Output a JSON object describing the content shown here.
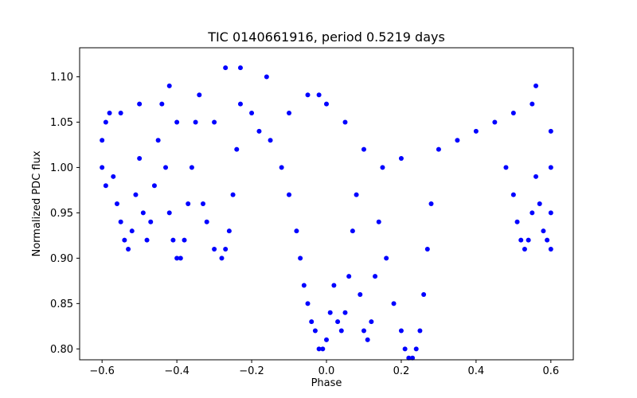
{
  "chart_data": {
    "type": "scatter",
    "title": "TIC 0140661916, period 0.5219 days",
    "xlabel": "Phase",
    "ylabel": "Normalized PDC flux",
    "xlim": [
      -0.66,
      0.66
    ],
    "ylim": [
      0.788,
      1.132
    ],
    "grid": false,
    "legend": "none",
    "marker_color": "#0000ff",
    "x_ticks": [
      {
        "value": -0.6,
        "label": "−0.6"
      },
      {
        "value": -0.4,
        "label": "−0.4"
      },
      {
        "value": -0.2,
        "label": "−0.2"
      },
      {
        "value": 0.0,
        "label": "0.0"
      },
      {
        "value": 0.2,
        "label": "0.2"
      },
      {
        "value": 0.4,
        "label": "0.4"
      },
      {
        "value": 0.6,
        "label": "0.6"
      }
    ],
    "y_ticks": [
      {
        "value": 0.8,
        "label": "0.80"
      },
      {
        "value": 0.85,
        "label": "0.85"
      },
      {
        "value": 0.9,
        "label": "0.90"
      },
      {
        "value": 0.95,
        "label": "0.95"
      },
      {
        "value": 1.0,
        "label": "1.00"
      },
      {
        "value": 1.05,
        "label": "1.05"
      },
      {
        "value": 1.1,
        "label": "1.10"
      }
    ],
    "series": [
      {
        "description_x": "phase",
        "points": [
          [
            -0.6,
            1.03
          ],
          [
            -0.6,
            1.0
          ],
          [
            -0.59,
            1.05
          ],
          [
            -0.59,
            0.98
          ],
          [
            -0.58,
            1.06
          ],
          [
            -0.57,
            0.99
          ],
          [
            -0.56,
            0.96
          ],
          [
            -0.55,
            0.94
          ],
          [
            -0.54,
            0.92
          ],
          [
            -0.53,
            0.91
          ],
          [
            -0.52,
            0.93
          ],
          [
            -0.51,
            0.97
          ],
          [
            -0.5,
            1.01
          ],
          [
            -0.5,
            1.07
          ],
          [
            -0.49,
            0.95
          ],
          [
            -0.48,
            0.92
          ],
          [
            -0.47,
            0.94
          ],
          [
            -0.46,
            0.98
          ],
          [
            -0.45,
            1.03
          ],
          [
            -0.44,
            1.07
          ],
          [
            -0.43,
            1.0
          ],
          [
            -0.42,
            0.95
          ],
          [
            -0.41,
            0.92
          ],
          [
            -0.4,
            0.9
          ],
          [
            -0.39,
            0.9
          ],
          [
            -0.38,
            0.92
          ],
          [
            -0.37,
            0.96
          ],
          [
            -0.36,
            1.0
          ],
          [
            -0.35,
            1.05
          ],
          [
            -0.34,
            1.08
          ],
          [
            -0.33,
            0.96
          ],
          [
            -0.32,
            0.94
          ],
          [
            -0.3,
            0.91
          ],
          [
            -0.28,
            0.9
          ],
          [
            -0.27,
            0.91
          ],
          [
            -0.26,
            0.93
          ],
          [
            -0.25,
            0.97
          ],
          [
            -0.24,
            1.02
          ],
          [
            -0.23,
            1.07
          ],
          [
            -0.2,
            1.06
          ],
          [
            -0.18,
            1.04
          ],
          [
            -0.15,
            1.03
          ],
          [
            -0.12,
            1.0
          ],
          [
            -0.1,
            0.97
          ],
          [
            -0.08,
            0.93
          ],
          [
            -0.07,
            0.9
          ],
          [
            -0.06,
            0.87
          ],
          [
            -0.05,
            0.85
          ],
          [
            -0.04,
            0.83
          ],
          [
            -0.03,
            0.82
          ],
          [
            -0.02,
            0.8
          ],
          [
            -0.01,
            0.8
          ],
          [
            0.0,
            0.81
          ],
          [
            0.01,
            0.84
          ],
          [
            0.02,
            0.87
          ],
          [
            0.03,
            0.83
          ],
          [
            0.04,
            0.82
          ],
          [
            0.05,
            0.84
          ],
          [
            0.06,
            0.88
          ],
          [
            0.07,
            0.93
          ],
          [
            0.08,
            0.97
          ],
          [
            0.09,
            0.86
          ],
          [
            0.1,
            0.82
          ],
          [
            0.11,
            0.81
          ],
          [
            0.12,
            0.83
          ],
          [
            0.13,
            0.88
          ],
          [
            0.14,
            0.94
          ],
          [
            0.16,
            0.9
          ],
          [
            0.18,
            0.85
          ],
          [
            0.2,
            0.82
          ],
          [
            0.21,
            0.8
          ],
          [
            0.22,
            0.79
          ],
          [
            0.23,
            0.79
          ],
          [
            0.24,
            0.8
          ],
          [
            0.25,
            0.82
          ],
          [
            0.26,
            0.86
          ],
          [
            0.27,
            0.91
          ],
          [
            0.28,
            0.96
          ],
          [
            0.3,
            1.02
          ],
          [
            0.35,
            1.03
          ],
          [
            0.4,
            1.04
          ],
          [
            0.45,
            1.05
          ],
          [
            0.48,
            1.0
          ],
          [
            0.5,
            0.97
          ],
          [
            0.51,
            0.94
          ],
          [
            0.52,
            0.92
          ],
          [
            0.53,
            0.91
          ],
          [
            0.54,
            0.92
          ],
          [
            0.55,
            0.95
          ],
          [
            0.56,
            0.99
          ],
          [
            0.57,
            0.96
          ],
          [
            0.58,
            0.93
          ],
          [
            0.59,
            0.92
          ],
          [
            0.6,
            0.91
          ],
          [
            0.6,
            0.95
          ],
          [
            0.6,
            1.0
          ],
          [
            0.6,
            1.04
          ],
          [
            -0.05,
            1.08
          ],
          [
            -0.02,
            1.08
          ],
          [
            0.0,
            1.07
          ],
          [
            -0.1,
            1.06
          ],
          [
            0.05,
            1.05
          ],
          [
            0.1,
            1.02
          ],
          [
            0.15,
            1.0
          ],
          [
            0.2,
            1.01
          ],
          [
            -0.4,
            1.05
          ],
          [
            -0.3,
            1.05
          ],
          [
            0.5,
            1.06
          ],
          [
            0.55,
            1.07
          ],
          [
            -0.27,
            1.11
          ],
          [
            -0.23,
            1.11
          ],
          [
            -0.16,
            1.1
          ],
          [
            -0.42,
            1.09
          ],
          [
            0.56,
            1.09
          ],
          [
            -0.55,
            1.06
          ]
        ]
      }
    ]
  }
}
